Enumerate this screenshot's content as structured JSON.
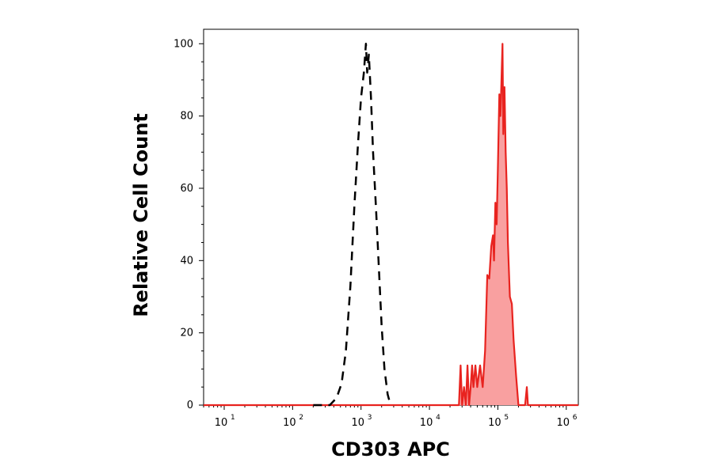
{
  "chart_data": {
    "type": "area",
    "xlabel": "CD303 APC",
    "ylabel": "Relative Cell Count",
    "x_scale": "log",
    "xlim": [
      5,
      1500000
    ],
    "ylim": [
      0,
      104
    ],
    "x_ticks": [
      {
        "value": 10,
        "base": "10",
        "exp": "1"
      },
      {
        "value": 100,
        "base": "10",
        "exp": "2"
      },
      {
        "value": 1000,
        "base": "10",
        "exp": "3"
      },
      {
        "value": 10000,
        "base": "10",
        "exp": "4"
      },
      {
        "value": 100000,
        "base": "10",
        "exp": "5"
      },
      {
        "value": 1000000,
        "base": "10",
        "exp": "6"
      }
    ],
    "y_ticks": [
      0,
      20,
      40,
      60,
      80,
      100
    ],
    "grid": false,
    "series": [
      {
        "style": "dashed",
        "color": "#000000",
        "filled": false,
        "points": [
          [
            200,
            0
          ],
          [
            350,
            0
          ],
          [
            440,
            2
          ],
          [
            520,
            6
          ],
          [
            600,
            15
          ],
          [
            700,
            33
          ],
          [
            800,
            55
          ],
          [
            900,
            72
          ],
          [
            1000,
            85
          ],
          [
            1100,
            92
          ],
          [
            1180,
            100
          ],
          [
            1230,
            92
          ],
          [
            1300,
            97
          ],
          [
            1400,
            85
          ],
          [
            1500,
            70
          ],
          [
            1650,
            55
          ],
          [
            1800,
            40
          ],
          [
            2000,
            22
          ],
          [
            2200,
            10
          ],
          [
            2450,
            3
          ],
          [
            2700,
            0
          ]
        ]
      },
      {
        "style": "solid",
        "color": "#e8231f",
        "fill": "#f9a0a0",
        "filled": true,
        "points": [
          [
            5,
            0
          ],
          [
            27000,
            0
          ],
          [
            28500,
            11
          ],
          [
            30000,
            0
          ],
          [
            32000,
            5
          ],
          [
            34000,
            0
          ],
          [
            36000,
            11
          ],
          [
            38000,
            0
          ],
          [
            40000,
            5
          ],
          [
            42000,
            11
          ],
          [
            44000,
            5
          ],
          [
            47000,
            11
          ],
          [
            50000,
            5
          ],
          [
            55000,
            11
          ],
          [
            60000,
            5
          ],
          [
            65000,
            15
          ],
          [
            70000,
            36
          ],
          [
            75000,
            35
          ],
          [
            80000,
            44
          ],
          [
            85000,
            47
          ],
          [
            88000,
            40
          ],
          [
            92000,
            56
          ],
          [
            96000,
            50
          ],
          [
            100000,
            65
          ],
          [
            105000,
            86
          ],
          [
            109000,
            80
          ],
          [
            113000,
            90
          ],
          [
            117000,
            100
          ],
          [
            120000,
            75
          ],
          [
            125000,
            88
          ],
          [
            130000,
            70
          ],
          [
            135000,
            60
          ],
          [
            140000,
            45
          ],
          [
            150000,
            30
          ],
          [
            160000,
            28
          ],
          [
            170000,
            18
          ],
          [
            185000,
            8
          ],
          [
            200000,
            0
          ],
          [
            250000,
            0
          ],
          [
            265000,
            5
          ],
          [
            275000,
            0
          ],
          [
            1500000,
            0
          ]
        ]
      }
    ]
  }
}
